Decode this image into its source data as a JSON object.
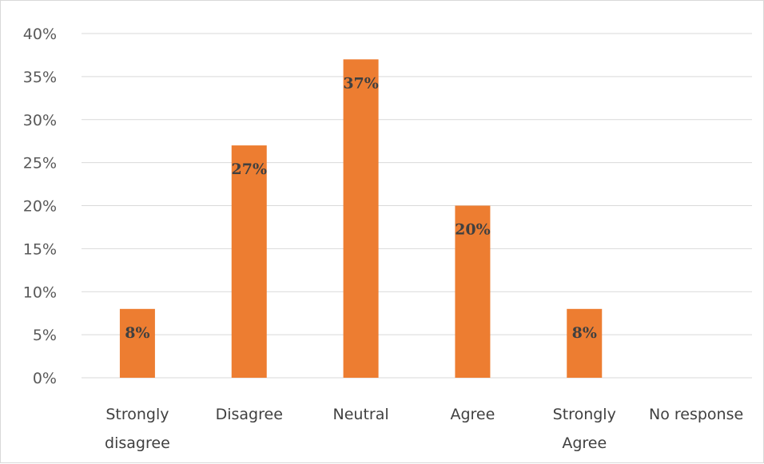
{
  "chart_data": {
    "type": "bar",
    "categories": [
      [
        "Strongly",
        "disagree"
      ],
      [
        "Disagree"
      ],
      [
        "Neutral"
      ],
      [
        "Agree"
      ],
      [
        "Strongly",
        "Agree"
      ],
      [
        "No response"
      ]
    ],
    "values": [
      8,
      27,
      37,
      20,
      8,
      0
    ],
    "data_labels": [
      "8%",
      "27%",
      "37%",
      "20%",
      "8%",
      ""
    ],
    "y_ticks": [
      "0%",
      "5%",
      "10%",
      "15%",
      "20%",
      "25%",
      "30%",
      "35%",
      "40%"
    ],
    "ylim": [
      0,
      40
    ],
    "title": "",
    "xlabel": "",
    "ylabel": "",
    "grid": true,
    "bar_color": "#ED7D31",
    "grid_color": "#D9D9D9"
  }
}
